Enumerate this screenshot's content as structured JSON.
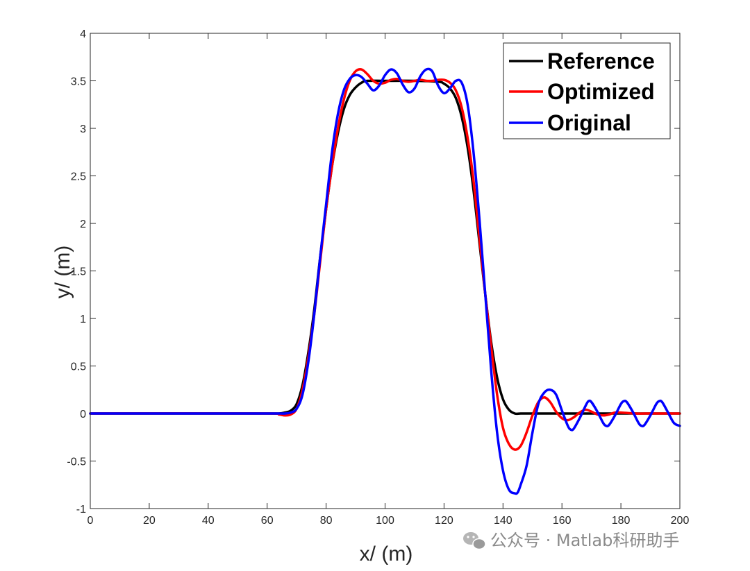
{
  "chart_data": {
    "type": "line",
    "title": "",
    "xlabel": "x/ (m)",
    "ylabel": "y/ (m)",
    "xlim": [
      0,
      200
    ],
    "ylim": [
      -1,
      4
    ],
    "xticks": [
      0,
      20,
      40,
      60,
      80,
      100,
      120,
      140,
      160,
      180,
      200
    ],
    "yticks": [
      -1,
      -0.5,
      0,
      0.5,
      1,
      1.5,
      2,
      2.5,
      3,
      3.5,
      4
    ],
    "grid": false,
    "legend_position": "top-right",
    "series": [
      {
        "name": "Reference",
        "color": "#000000",
        "x": [
          0,
          60,
          64,
          66,
          68,
          70,
          72,
          74,
          76,
          78,
          80,
          82,
          84,
          86,
          88,
          90,
          92,
          94,
          100,
          110,
          118,
          120,
          122,
          124,
          126,
          128,
          130,
          132,
          134,
          136,
          138,
          140,
          142,
          144,
          146,
          150,
          160,
          170,
          180,
          190,
          200
        ],
        "y": [
          0,
          0,
          0.0,
          0.01,
          0.03,
          0.1,
          0.3,
          0.65,
          1.1,
          1.65,
          2.15,
          2.6,
          2.95,
          3.2,
          3.35,
          3.43,
          3.48,
          3.5,
          3.5,
          3.5,
          3.49,
          3.47,
          3.42,
          3.32,
          3.12,
          2.8,
          2.35,
          1.8,
          1.25,
          0.75,
          0.38,
          0.15,
          0.04,
          0.0,
          0.0,
          0.0,
          0.0,
          0.0,
          0.0,
          0.0,
          0.0
        ]
      },
      {
        "name": "Optimized",
        "color": "#ff0000",
        "x": [
          0,
          60,
          64,
          66,
          68,
          70,
          72,
          74,
          76,
          78,
          80,
          82,
          84,
          86,
          88,
          90,
          92,
          94,
          96,
          98,
          100,
          102,
          104,
          106,
          108,
          110,
          112,
          114,
          116,
          118,
          120,
          122,
          124,
          126,
          128,
          130,
          132,
          134,
          136,
          138,
          140,
          142,
          144,
          146,
          148,
          150,
          152,
          154,
          156,
          158,
          160,
          162,
          164,
          166,
          168,
          170,
          172,
          174,
          176,
          178,
          180,
          185,
          190,
          195,
          200
        ],
        "y": [
          0,
          0,
          -0.01,
          -0.02,
          -0.01,
          0.05,
          0.25,
          0.6,
          1.05,
          1.6,
          2.15,
          2.6,
          3.0,
          3.3,
          3.5,
          3.6,
          3.62,
          3.57,
          3.5,
          3.47,
          3.48,
          3.51,
          3.52,
          3.5,
          3.49,
          3.5,
          3.51,
          3.5,
          3.5,
          3.51,
          3.51,
          3.48,
          3.4,
          3.22,
          2.9,
          2.45,
          1.85,
          1.25,
          0.7,
          0.2,
          -0.15,
          -0.32,
          -0.38,
          -0.34,
          -0.2,
          -0.02,
          0.12,
          0.17,
          0.12,
          0.02,
          -0.05,
          -0.07,
          -0.04,
          0.01,
          0.04,
          0.02,
          -0.01,
          -0.02,
          -0.01,
          0.01,
          0.01,
          0.0,
          0.0,
          0.0,
          0.0
        ]
      },
      {
        "name": "Original",
        "color": "#0000ff",
        "x": [
          0,
          60,
          64,
          66,
          68,
          70,
          72,
          74,
          76,
          78,
          80,
          82,
          84,
          86,
          88,
          90,
          92,
          94,
          96,
          98,
          100,
          102,
          104,
          106,
          108,
          110,
          112,
          114,
          116,
          118,
          120,
          122,
          124,
          126,
          128,
          130,
          132,
          134,
          136,
          138,
          140,
          142,
          144,
          145,
          146,
          148,
          150,
          152,
          154,
          156,
          158,
          160,
          162,
          163,
          164,
          166,
          168,
          169,
          170,
          172,
          174,
          175,
          176,
          178,
          180,
          181,
          182,
          184,
          186,
          187,
          188,
          190,
          192,
          193,
          194,
          196,
          198,
          200
        ],
        "y": [
          0,
          0,
          0.0,
          0.0,
          0.01,
          0.05,
          0.2,
          0.55,
          1.05,
          1.65,
          2.2,
          2.75,
          3.15,
          3.4,
          3.52,
          3.56,
          3.54,
          3.47,
          3.4,
          3.45,
          3.56,
          3.62,
          3.58,
          3.46,
          3.38,
          3.42,
          3.55,
          3.62,
          3.6,
          3.45,
          3.37,
          3.42,
          3.5,
          3.48,
          3.25,
          2.75,
          2.05,
          1.25,
          0.45,
          -0.2,
          -0.6,
          -0.8,
          -0.84,
          -0.83,
          -0.75,
          -0.55,
          -0.2,
          0.1,
          0.22,
          0.25,
          0.2,
          0.03,
          -0.13,
          -0.17,
          -0.16,
          -0.05,
          0.08,
          0.13,
          0.12,
          0.02,
          -0.1,
          -0.13,
          -0.12,
          -0.02,
          0.1,
          0.13,
          0.12,
          0.02,
          -0.1,
          -0.13,
          -0.12,
          -0.02,
          0.1,
          0.13,
          0.12,
          0.01,
          -0.1,
          -0.13
        ]
      }
    ]
  },
  "watermark": {
    "text": "公众号 · Matlab科研助手"
  }
}
